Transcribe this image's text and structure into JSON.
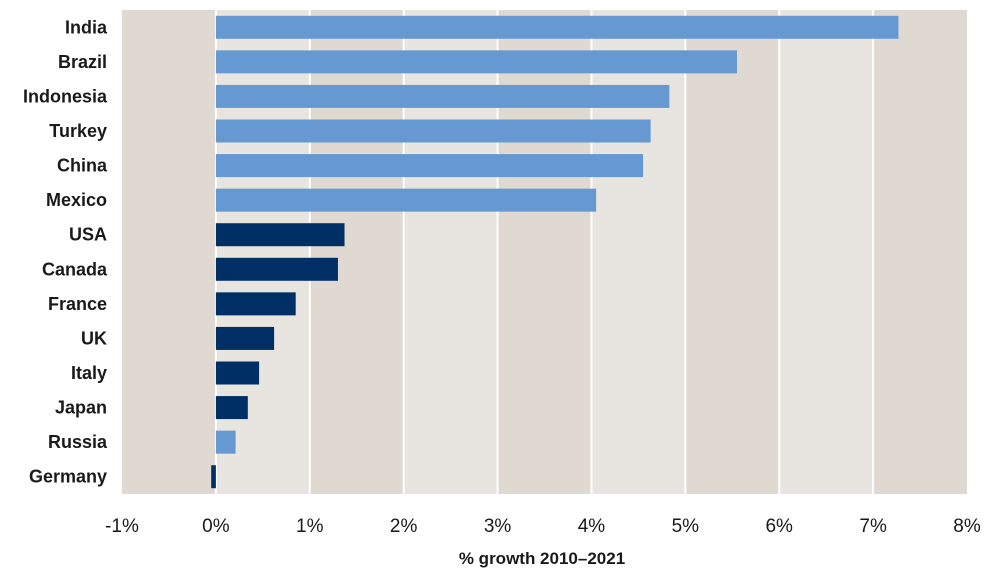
{
  "chart_data": {
    "type": "bar",
    "orientation": "horizontal",
    "categories": [
      "India",
      "Brazil",
      "Indonesia",
      "Turkey",
      "China",
      "Mexico",
      "USA",
      "Canada",
      "France",
      "UK",
      "Italy",
      "Japan",
      "Russia",
      "Germany"
    ],
    "values": [
      7.27,
      5.55,
      4.83,
      4.63,
      4.55,
      4.05,
      1.37,
      1.3,
      0.85,
      0.62,
      0.46,
      0.34,
      0.21,
      -0.05
    ],
    "bar_group": [
      "light",
      "light",
      "light",
      "light",
      "light",
      "light",
      "dark",
      "dark",
      "dark",
      "dark",
      "dark",
      "dark",
      "light",
      "dark"
    ],
    "xlabel": "% growth 2010–2021",
    "xlim": [
      -1,
      8
    ],
    "x_ticks": [
      -1,
      0,
      1,
      2,
      3,
      4,
      5,
      6,
      7,
      8
    ],
    "x_tick_labels": [
      "-1%",
      "0%",
      "1%",
      "2%",
      "3%",
      "4%",
      "5%",
      "6%",
      "7%",
      "8%"
    ],
    "grid": "vertical",
    "colors": {
      "light": "#6699d2",
      "dark": "#002f65",
      "band_dark": "#e0d9d1",
      "band_light": "#e8e4df",
      "gridline": "#ffffff"
    }
  }
}
